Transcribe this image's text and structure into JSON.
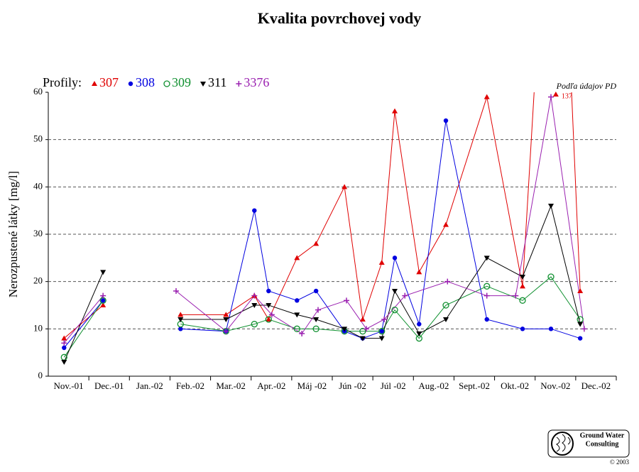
{
  "chart_data": {
    "type": "line",
    "title": "Kvalita povrchovej vody",
    "ylabel": "Nerozpustené látky [mg/l]",
    "legend_title": "Profily:",
    "source_note": "Podľa údajov PD",
    "categories": [
      "Nov.-01",
      "Dec.-01",
      "Jan.-02",
      "Feb.-02",
      "Mar.-02",
      "Apr.-02",
      "Máj -02",
      "Jún -02",
      "Júl -02",
      "Aug.-02",
      "Sept.-02",
      "Okt.-02",
      "Nov.-02",
      "Dec.-02"
    ],
    "xlim": [
      0,
      14
    ],
    "ylim": [
      0,
      60
    ],
    "yticks": [
      0,
      10,
      20,
      30,
      40,
      50,
      60
    ],
    "grid": true,
    "series": [
      {
        "name": "307",
        "color": "#e00000",
        "marker": "triangle-up",
        "x": [
          0.39,
          1.35,
          null,
          3.26,
          4.38,
          5.08,
          5.43,
          6.13,
          6.6,
          7.3,
          7.75,
          8.22,
          8.54,
          9.14,
          9.8,
          10.81,
          11.69,
          12.51,
          13.11
        ],
        "values": [
          8,
          15,
          null,
          13,
          13,
          17,
          12,
          25,
          28,
          40,
          12,
          24,
          56,
          22,
          32,
          59,
          19,
          137,
          18
        ],
        "value_labels": [
          null,
          null,
          null,
          null,
          null,
          null,
          null,
          null,
          null,
          null,
          null,
          null,
          null,
          null,
          null,
          null,
          null,
          "137",
          null
        ]
      },
      {
        "name": "308",
        "color": "#0000e0",
        "marker": "circle",
        "x": [
          0.39,
          1.35,
          null,
          3.26,
          4.38,
          5.08,
          5.43,
          6.13,
          6.6,
          7.3,
          7.75,
          8.22,
          8.54,
          9.14,
          9.8,
          10.81,
          11.69,
          12.39,
          13.11
        ],
        "values": [
          6,
          16,
          null,
          10,
          9.5,
          35,
          18,
          16,
          18,
          9.5,
          8,
          9.5,
          25,
          11,
          54,
          12,
          10,
          10,
          8
        ]
      },
      {
        "name": "309",
        "color": "#109030",
        "marker": "open-circle",
        "x": [
          0.39,
          1.35,
          null,
          3.26,
          4.38,
          5.08,
          5.43,
          6.13,
          6.6,
          7.3,
          7.75,
          8.22,
          8.54,
          9.14,
          9.8,
          10.81,
          11.69,
          12.39,
          13.11
        ],
        "values": [
          4,
          16,
          null,
          11,
          9.5,
          11,
          12,
          10,
          10,
          9.5,
          9.5,
          9.5,
          14,
          8,
          15,
          19,
          16,
          21,
          12
        ]
      },
      {
        "name": "311",
        "color": "#000000",
        "marker": "triangle-down",
        "x": [
          0.39,
          1.35,
          null,
          3.26,
          4.38,
          5.08,
          5.43,
          6.13,
          6.6,
          7.3,
          7.75,
          8.22,
          8.54,
          9.14,
          9.8,
          10.81,
          11.69,
          12.39,
          13.11
        ],
        "values": [
          3,
          22,
          null,
          12,
          12,
          15,
          15,
          13,
          12,
          10,
          8,
          8,
          18,
          9,
          12,
          25,
          21,
          36,
          11
        ]
      },
      {
        "name": "3376",
        "color": "#9a20b0",
        "marker": "plus",
        "x": [
          0.39,
          1.35,
          null,
          3.15,
          4.38,
          5.08,
          5.51,
          6.25,
          6.65,
          7.35,
          7.84,
          8.28,
          8.79,
          9.84,
          10.81,
          11.52,
          12.39,
          13.21
        ],
        "values": [
          7,
          17,
          null,
          18,
          9.5,
          17,
          13,
          9,
          14,
          16,
          10,
          12,
          17,
          20,
          17,
          17,
          59,
          10
        ]
      }
    ]
  },
  "footer": {
    "logo_line1": "Ground Water",
    "logo_line2": "Consulting",
    "copyright": "© 2003"
  }
}
